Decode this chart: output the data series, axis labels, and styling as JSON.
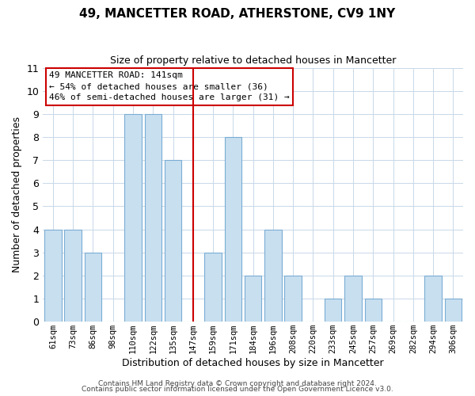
{
  "title": "49, MANCETTER ROAD, ATHERSTONE, CV9 1NY",
  "subtitle": "Size of property relative to detached houses in Mancetter",
  "xlabel": "Distribution of detached houses by size in Mancetter",
  "ylabel": "Number of detached properties",
  "bin_labels": [
    "61sqm",
    "73sqm",
    "86sqm",
    "98sqm",
    "110sqm",
    "122sqm",
    "135sqm",
    "147sqm",
    "159sqm",
    "171sqm",
    "184sqm",
    "196sqm",
    "208sqm",
    "220sqm",
    "233sqm",
    "245sqm",
    "257sqm",
    "269sqm",
    "282sqm",
    "294sqm",
    "306sqm"
  ],
  "bar_heights": [
    4,
    4,
    3,
    0,
    9,
    9,
    7,
    0,
    3,
    8,
    2,
    4,
    2,
    0,
    1,
    2,
    1,
    0,
    0,
    2,
    1
  ],
  "bar_color": "#c8dff0",
  "bar_edge_color": "#7aadd4",
  "highlight_line_color": "#cc0000",
  "highlight_line_index": 7,
  "annotation_title": "49 MANCETTER ROAD: 141sqm",
  "annotation_line1": "← 54% of detached houses are smaller (36)",
  "annotation_line2": "46% of semi-detached houses are larger (31) →",
  "annotation_box_color": "#ffffff",
  "annotation_box_edge_color": "#cc0000",
  "ylim": [
    0,
    11
  ],
  "yticks": [
    0,
    1,
    2,
    3,
    4,
    5,
    6,
    7,
    8,
    9,
    10,
    11
  ],
  "footer1": "Contains HM Land Registry data © Crown copyright and database right 2024.",
  "footer2": "Contains public sector information licensed under the Open Government Licence v3.0."
}
